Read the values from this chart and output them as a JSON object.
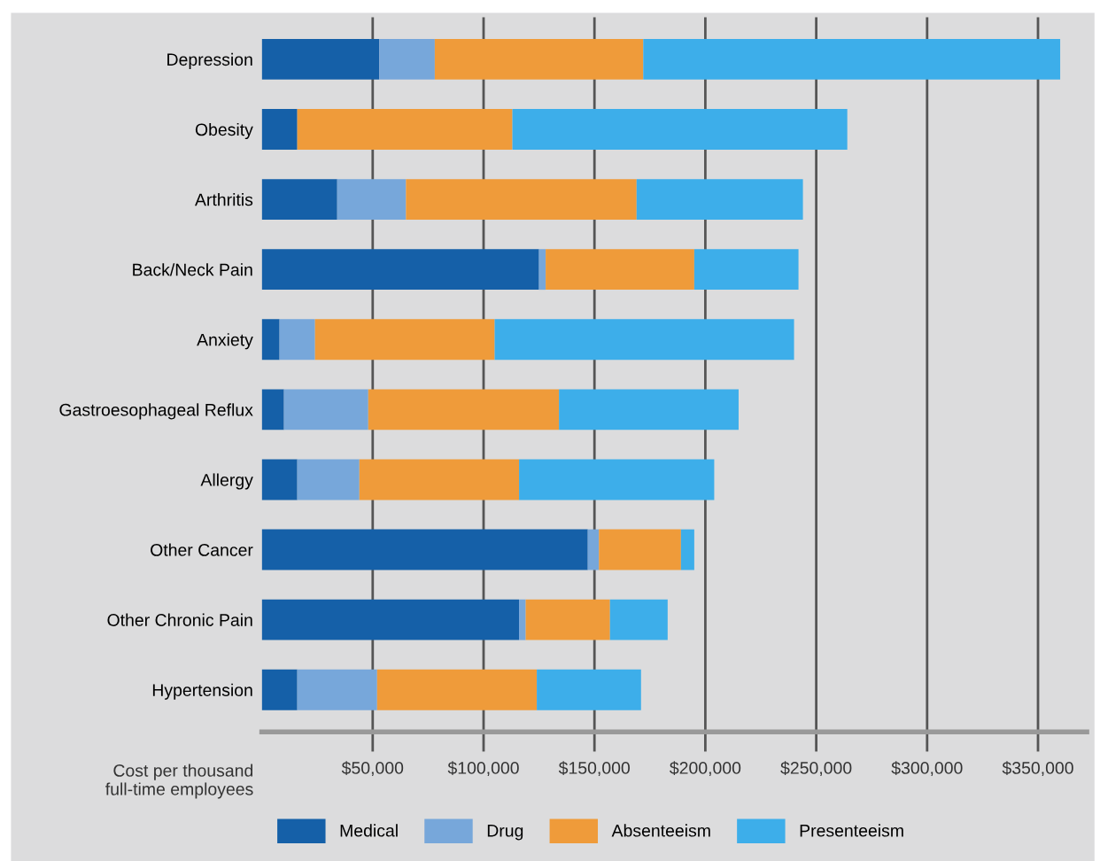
{
  "chart_data": {
    "type": "bar",
    "orientation": "horizontal",
    "stacked": true,
    "categories": [
      "Depression",
      "Obesity",
      "Arthritis",
      "Back/Neck Pain",
      "Anxiety",
      "Gastroesophageal Reflux",
      "Allergy",
      "Other Cancer",
      "Other Chronic Pain",
      "Hypertension"
    ],
    "series": [
      {
        "name": "Medical",
        "color": "#1560a8",
        "values": [
          53000,
          16000,
          34000,
          125000,
          8000,
          10000,
          16000,
          147000,
          116000,
          16000
        ]
      },
      {
        "name": "Drug",
        "color": "#77a7da",
        "values": [
          25000,
          0,
          31000,
          3000,
          16000,
          38000,
          28000,
          5000,
          3000,
          36000
        ]
      },
      {
        "name": "Absenteeism",
        "color": "#ef9b3a",
        "values": [
          94000,
          97000,
          104000,
          67000,
          81000,
          86000,
          72000,
          37000,
          38000,
          72000
        ]
      },
      {
        "name": "Presenteeism",
        "color": "#3daeea",
        "values": [
          188000,
          151000,
          75000,
          47000,
          135000,
          81000,
          88000,
          6000,
          26000,
          47000
        ]
      }
    ],
    "xlabel": "Cost per thousand\nfull-time employees",
    "xlim": [
      0,
      372000
    ],
    "xticks": [
      {
        "value": 50000,
        "label": "$50,000"
      },
      {
        "value": 100000,
        "label": "$100,000"
      },
      {
        "value": 150000,
        "label": "$150,000"
      },
      {
        "value": 200000,
        "label": "$200,000"
      },
      {
        "value": 250000,
        "label": "$250,000"
      },
      {
        "value": 300000,
        "label": "$300,000"
      },
      {
        "value": 350000,
        "label": "$350,000"
      }
    ],
    "grid": "x",
    "legend": "bottom"
  }
}
